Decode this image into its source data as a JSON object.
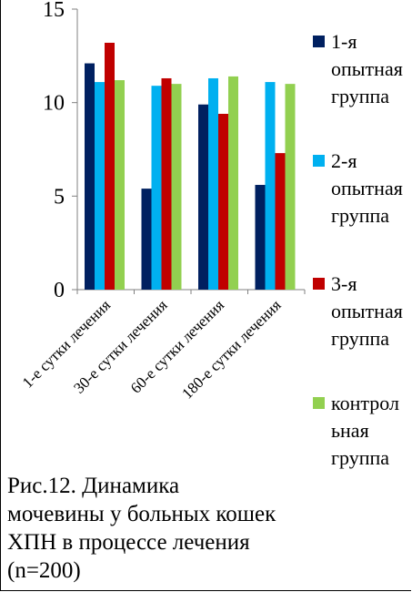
{
  "chart_data": {
    "type": "bar",
    "categories": [
      "1-е сутки лечения",
      "30-е сутки лечения",
      "60-е сутки лечения",
      "180-е сутки лечения"
    ],
    "series": [
      {
        "name": "1-я опытная группа",
        "color": "#002060",
        "values": [
          12.1,
          5.4,
          9.9,
          5.6
        ]
      },
      {
        "name": "2-я опытная группа",
        "color": "#00B0F0",
        "values": [
          11.1,
          10.9,
          11.3,
          11.1
        ]
      },
      {
        "name": "3-я опытная группа",
        "color": "#C00000",
        "values": [
          13.2,
          11.3,
          9.4,
          7.3
        ]
      },
      {
        "name": "контрольная группа",
        "color": "#92D050",
        "values": [
          11.2,
          11.0,
          11.4,
          11.0
        ]
      }
    ],
    "y_ticks": [
      0,
      5,
      10,
      15
    ],
    "ylim": [
      0,
      15
    ],
    "grid": false,
    "legend_position": "right"
  },
  "legend": [
    {
      "label": "1-я\nопытная\nгруппа",
      "color": "#002060",
      "icon": "square-swatch"
    },
    {
      "label": "2-я\nопытная\nгруппа",
      "color": "#00B0F0",
      "icon": "square-swatch"
    },
    {
      "label": "3-я\nопытная\nгруппа",
      "color": "#C00000",
      "icon": "square-swatch"
    },
    {
      "label": "контрол\nьная\nгруппа",
      "color": "#92D050",
      "icon": "square-swatch"
    }
  ],
  "caption": "Рис.12. Динамика\nмочевины у больных кошек\nХПН в процессе лечения\n(n=200)"
}
